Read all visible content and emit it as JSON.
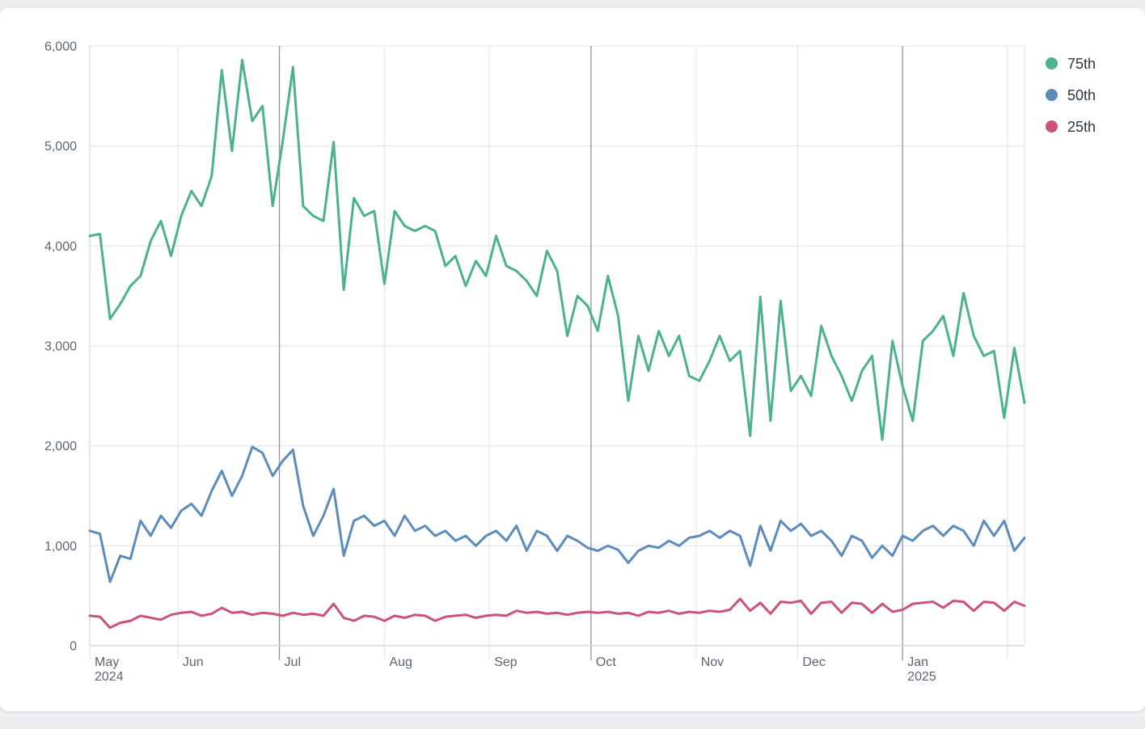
{
  "page": {
    "background_color": "#eceef0",
    "card_background": "#ffffff"
  },
  "legend": {
    "position": "top-right",
    "items": [
      {
        "label": "75th",
        "color": "#4cb191"
      },
      {
        "label": "50th",
        "color": "#5b8cbb"
      },
      {
        "label": "25th",
        "color": "#cc5278"
      }
    ]
  },
  "colors": {
    "grid_light": "#e7eaed",
    "grid_dark": "#969a9f",
    "axis_line": "#d6dade",
    "tick_text": "#5b6573",
    "legend_text": "#2b3642"
  },
  "chart_data": {
    "type": "line",
    "title": "",
    "xlabel": "",
    "ylabel": "",
    "x_axis": {
      "start_date": "2024-05-06",
      "end_date": "2025-02-05",
      "total_days": 276,
      "point_interval_days": 3,
      "ticks": [
        {
          "label": "May",
          "sublabel": "2024",
          "day": 0,
          "major": false
        },
        {
          "label": "Jun",
          "sublabel": "",
          "day": 26,
          "major": false
        },
        {
          "label": "Jul",
          "sublabel": "",
          "day": 56,
          "major": true
        },
        {
          "label": "Aug",
          "sublabel": "",
          "day": 87,
          "major": false
        },
        {
          "label": "Sep",
          "sublabel": "",
          "day": 118,
          "major": false
        },
        {
          "label": "Oct",
          "sublabel": "",
          "day": 148,
          "major": true
        },
        {
          "label": "Nov",
          "sublabel": "",
          "day": 179,
          "major": false
        },
        {
          "label": "Dec",
          "sublabel": "",
          "day": 209,
          "major": false
        },
        {
          "label": "Jan",
          "sublabel": "2025",
          "day": 240,
          "major": true
        },
        {
          "label": "",
          "sublabel": "",
          "day": 271,
          "major": false
        }
      ]
    },
    "y_axis": {
      "min": 0,
      "max": 6000,
      "tick_step": 1000,
      "tick_labels": [
        "0",
        "1,000",
        "2,000",
        "3,000",
        "4,000",
        "5,000",
        "6,000"
      ],
      "grid": true
    },
    "legend_position": "right",
    "series": [
      {
        "name": "75th",
        "color": "#4cb191",
        "values": [
          4100,
          4120,
          3270,
          3420,
          3600,
          3700,
          4050,
          4250,
          3900,
          4300,
          4550,
          4400,
          4700,
          5760,
          4950,
          5860,
          5250,
          5400,
          4400,
          5050,
          5790,
          4400,
          4300,
          4250,
          5040,
          3560,
          4480,
          4300,
          4350,
          3620,
          4350,
          4200,
          4150,
          4200,
          4150,
          3800,
          3900,
          3600,
          3850,
          3700,
          4100,
          3800,
          3750,
          3650,
          3500,
          3950,
          3750,
          3100,
          3500,
          3400,
          3150,
          3700,
          3300,
          2450,
          3100,
          2750,
          3150,
          2900,
          3100,
          2700,
          2650,
          2850,
          3100,
          2850,
          2950,
          2100,
          3490,
          2250,
          3450,
          2550,
          2700,
          2500,
          3200,
          2900,
          2700,
          2450,
          2750,
          2900,
          2060,
          3050,
          2600,
          2250,
          3050,
          3150,
          3300,
          2900,
          3530,
          3100,
          2900,
          2950,
          2280,
          2980,
          2430
        ]
      },
      {
        "name": "50th",
        "color": "#5b8cbb",
        "values": [
          1150,
          1120,
          640,
          900,
          870,
          1250,
          1100,
          1300,
          1180,
          1350,
          1420,
          1300,
          1550,
          1750,
          1500,
          1700,
          1990,
          1930,
          1700,
          1850,
          1960,
          1400,
          1100,
          1300,
          1570,
          900,
          1250,
          1300,
          1200,
          1250,
          1100,
          1300,
          1150,
          1200,
          1100,
          1150,
          1050,
          1100,
          1000,
          1100,
          1150,
          1050,
          1200,
          950,
          1150,
          1100,
          950,
          1100,
          1050,
          980,
          950,
          1000,
          960,
          830,
          950,
          1000,
          980,
          1050,
          1000,
          1080,
          1100,
          1150,
          1080,
          1150,
          1100,
          800,
          1200,
          950,
          1250,
          1150,
          1220,
          1100,
          1150,
          1050,
          900,
          1100,
          1050,
          880,
          1000,
          900,
          1100,
          1050,
          1150,
          1200,
          1100,
          1200,
          1150,
          1000,
          1250,
          1100,
          1250,
          950,
          1080
        ]
      },
      {
        "name": "25th",
        "color": "#cc5278",
        "values": [
          300,
          290,
          180,
          230,
          250,
          300,
          280,
          260,
          310,
          330,
          340,
          300,
          320,
          380,
          330,
          340,
          310,
          330,
          320,
          300,
          330,
          310,
          320,
          300,
          420,
          280,
          250,
          300,
          290,
          250,
          300,
          280,
          310,
          300,
          250,
          290,
          300,
          310,
          280,
          300,
          310,
          300,
          350,
          330,
          340,
          320,
          330,
          310,
          330,
          340,
          330,
          340,
          320,
          330,
          300,
          340,
          330,
          350,
          320,
          340,
          330,
          350,
          340,
          360,
          470,
          350,
          430,
          320,
          440,
          430,
          450,
          320,
          430,
          440,
          330,
          430,
          420,
          330,
          420,
          340,
          360,
          420,
          430,
          440,
          380,
          450,
          440,
          350,
          440,
          430,
          350,
          440,
          400
        ]
      }
    ]
  }
}
